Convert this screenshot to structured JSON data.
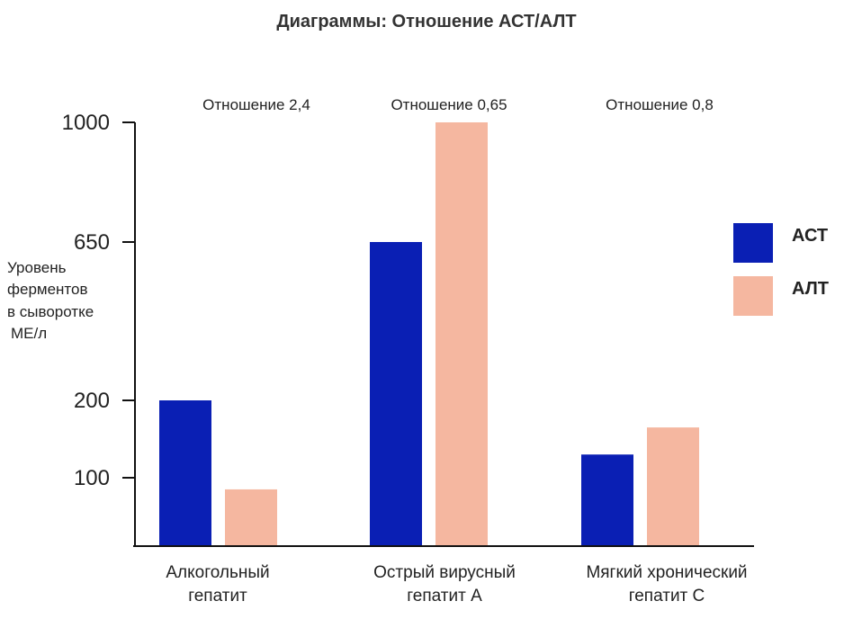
{
  "chart_data": {
    "type": "bar",
    "title": "Диаграммы: Отношение АСТ/АЛТ",
    "ylabel_lines": [
      "Уровень",
      "ферментов",
      "в сыворотке",
      "МЕ/л"
    ],
    "xlabel": "",
    "y_ticks": [
      100,
      200,
      650,
      1000
    ],
    "ylim": [
      0,
      1000
    ],
    "categories": [
      {
        "lines": [
          "Алкогольный",
          "гепатит"
        ]
      },
      {
        "lines": [
          "Острый вирусный",
          "гепатит А"
        ]
      },
      {
        "lines": [
          "Мягкий хронический",
          "гепатит С"
        ]
      }
    ],
    "ratio_labels": [
      "Отношение 2,4",
      "Отношение 0,65",
      "Отношение 0,8"
    ],
    "series": [
      {
        "name": "АСТ",
        "color": "#0a1fb4",
        "values": [
          200,
          650,
          130
        ]
      },
      {
        "name": "АЛТ",
        "color": "#f5b7a0",
        "values": [
          83,
          1000,
          165
        ]
      }
    ],
    "legend": "right"
  }
}
